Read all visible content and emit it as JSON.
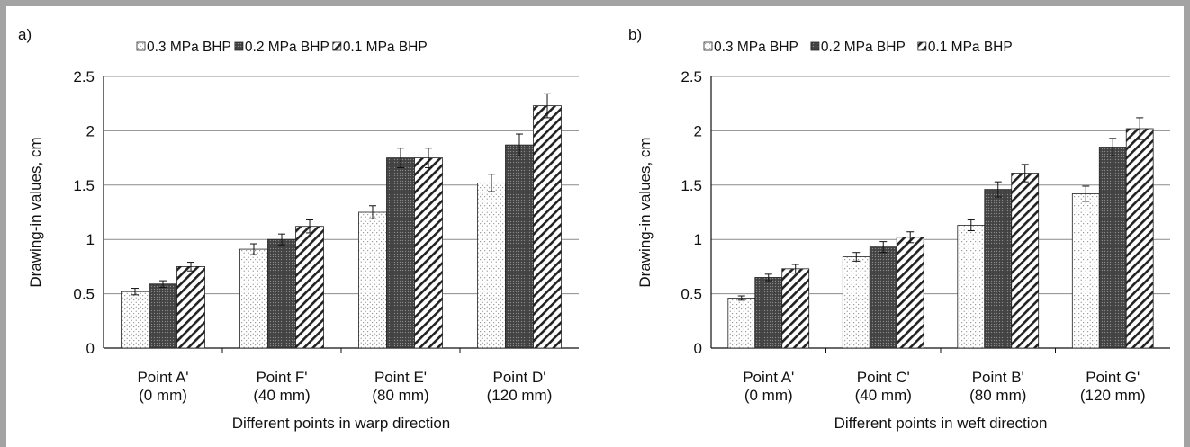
{
  "chart_data": [
    {
      "type": "bar",
      "panel_label": "a)",
      "legend": [
        "0.3 MPa BHP",
        "0.2 MPa BHP",
        "0.1 MPa BHP"
      ],
      "categories": [
        [
          "Point A'",
          "(0 mm)"
        ],
        [
          "Point F'",
          "(40 mm)"
        ],
        [
          "Point E'",
          "(80 mm)"
        ],
        [
          "Point D'",
          "(120 mm)"
        ]
      ],
      "series": [
        {
          "name": "0.3 MPa BHP",
          "values": [
            0.52,
            0.91,
            1.25,
            1.52
          ],
          "errors": [
            0.03,
            0.05,
            0.06,
            0.08
          ]
        },
        {
          "name": "0.2 MPa BHP",
          "values": [
            0.59,
            1.0,
            1.75,
            1.87
          ],
          "errors": [
            0.03,
            0.05,
            0.09,
            0.1
          ]
        },
        {
          "name": "0.1 MPa BHP",
          "values": [
            0.75,
            1.12,
            1.75,
            2.23
          ],
          "errors": [
            0.04,
            0.06,
            0.09,
            0.11
          ]
        }
      ],
      "xlabel": "Different points in warp direction",
      "ylabel": "Drawing-in values, cm",
      "ylim": [
        0,
        2.5
      ],
      "yticks": [
        "0",
        "0.5",
        "1",
        "1.5",
        "2",
        "2.5"
      ],
      "grid": true,
      "legend_position": "top"
    },
    {
      "type": "bar",
      "panel_label": "b)",
      "legend": [
        "0.3 MPa BHP",
        "0.2 MPa BHP",
        "0.1 MPa BHP"
      ],
      "categories": [
        [
          "Point A'",
          "(0 mm)"
        ],
        [
          "Point C'",
          "(40 mm)"
        ],
        [
          "Point B'",
          "(80 mm)"
        ],
        [
          "Point G'",
          "(120 mm)"
        ]
      ],
      "series": [
        {
          "name": "0.3 MPa BHP",
          "values": [
            0.46,
            0.84,
            1.13,
            1.42
          ],
          "errors": [
            0.02,
            0.04,
            0.05,
            0.07
          ]
        },
        {
          "name": "0.2 MPa BHP",
          "values": [
            0.65,
            0.93,
            1.46,
            1.85
          ],
          "errors": [
            0.03,
            0.05,
            0.07,
            0.08
          ]
        },
        {
          "name": "0.1 MPa BHP",
          "values": [
            0.73,
            1.02,
            1.61,
            2.02
          ],
          "errors": [
            0.04,
            0.05,
            0.08,
            0.1
          ]
        }
      ],
      "xlabel": "Different points in weft direction",
      "ylabel": "Drawing-in values, cm",
      "ylim": [
        0,
        2.5
      ],
      "yticks": [
        "0",
        "0.5",
        "1",
        "1.5",
        "2",
        "2.5"
      ],
      "grid": true,
      "legend_position": "top"
    }
  ]
}
